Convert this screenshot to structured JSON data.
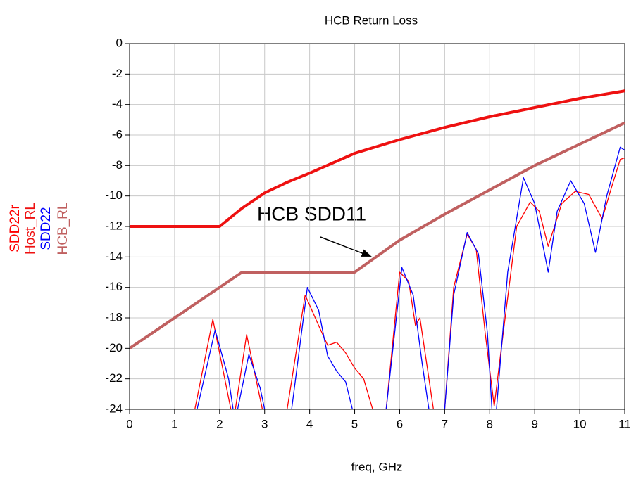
{
  "chart_data": {
    "type": "line",
    "title": "HCB Return Loss",
    "x_label": "freq, GHz",
    "xlim": [
      0,
      11
    ],
    "xticks": [
      0,
      1,
      2,
      3,
      4,
      5,
      6,
      7,
      8,
      9,
      10,
      11
    ],
    "ylim": [
      -24,
      0
    ],
    "yticks": [
      0,
      -2,
      -4,
      -6,
      -8,
      -10,
      -12,
      -14,
      -16,
      -18,
      -20,
      -22,
      -24
    ],
    "grid": true,
    "annotation": "HCB SDD11",
    "series": [
      {
        "name": "SDD22r",
        "color": "#ff0000",
        "line_width": 1.3,
        "x": [
          1.45,
          1.85,
          2.25,
          2.35,
          2.6,
          2.95,
          3.5,
          3.9,
          4.2,
          4.4,
          4.6,
          4.8,
          5.0,
          5.2,
          5.4,
          5.7,
          6.0,
          6.2,
          6.35,
          6.45,
          6.6,
          6.75,
          7.0,
          7.2,
          7.5,
          7.7,
          7.9,
          8.1,
          8.3,
          8.6,
          8.9,
          9.1,
          9.3,
          9.6,
          9.9,
          10.2,
          10.5,
          10.7,
          10.9,
          11
        ],
        "values": [
          -24,
          -18.1,
          -24,
          -24,
          -19.1,
          -24,
          -24,
          -16.5,
          -18.5,
          -19.8,
          -19.6,
          -20.3,
          -21.3,
          -22,
          -24,
          -24,
          -15,
          -15.6,
          -18.5,
          -18,
          -21,
          -24,
          -24,
          -16,
          -12.5,
          -13.5,
          -19,
          -23.8,
          -19,
          -12,
          -10.4,
          -11,
          -13.3,
          -10.5,
          -9.7,
          -9.9,
          -11.5,
          -9.5,
          -7.6,
          -7.5
        ]
      },
      {
        "name": "Host_RL",
        "color": "#ee1111",
        "line_width": 4,
        "x": [
          0,
          2,
          2.5,
          3,
          3.5,
          4,
          5,
          6,
          7,
          8,
          9,
          10,
          11
        ],
        "values": [
          -12,
          -12,
          -10.8,
          -9.8,
          -9.1,
          -8.5,
          -7.2,
          -6.3,
          -5.5,
          -4.8,
          -4.2,
          -3.6,
          -3.1
        ]
      },
      {
        "name": "SDD22",
        "color": "#0000ff",
        "line_width": 1.3,
        "x": [
          1.5,
          1.9,
          2.2,
          2.3,
          2.4,
          2.65,
          2.9,
          3.0,
          3.6,
          3.95,
          4.2,
          4.4,
          4.6,
          4.8,
          4.95,
          5.7,
          6.05,
          6.3,
          6.5,
          6.65,
          7.0,
          7.2,
          7.5,
          7.75,
          7.95,
          8.05,
          8.15,
          8.4,
          8.75,
          9.0,
          9.3,
          9.5,
          9.8,
          10.1,
          10.35,
          10.6,
          10.9,
          11
        ],
        "values": [
          -24,
          -18.8,
          -22,
          -24,
          -24,
          -20.4,
          -22.6,
          -24,
          -24,
          -16,
          -17.5,
          -20.5,
          -21.5,
          -22.2,
          -24,
          -24,
          -14.7,
          -16.5,
          -21,
          -24,
          -24,
          -16.5,
          -12.4,
          -13.8,
          -19,
          -24,
          -24,
          -15,
          -8.8,
          -10.5,
          -15,
          -11,
          -9,
          -10.5,
          -13.7,
          -10,
          -6.8,
          -7
        ]
      },
      {
        "name": "HCB_RL",
        "color": "#c06060",
        "line_width": 4,
        "x": [
          0,
          2.5,
          5,
          6,
          7,
          8,
          9,
          10,
          11
        ],
        "values": [
          -20,
          -15,
          -15,
          -12.9,
          -11.2,
          -9.6,
          -8,
          -6.6,
          -5.2
        ]
      }
    ]
  }
}
